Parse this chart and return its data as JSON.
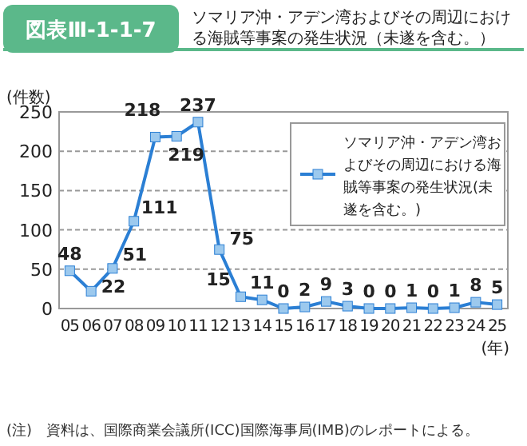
{
  "chart_data": {
    "type": "line",
    "title": "図表Ⅲ-1-1-7",
    "subtitle": "ソマリア沖・アデン湾およびその周辺における海賊等事案の発生状況（未遂を含む。）",
    "ylabel": "(件数)",
    "xlabel": "(年)",
    "categories": [
      "05",
      "06",
      "07",
      "08",
      "09",
      "10",
      "11",
      "12",
      "13",
      "14",
      "15",
      "16",
      "17",
      "18",
      "19",
      "20",
      "21",
      "22",
      "23",
      "24",
      "25"
    ],
    "series": [
      {
        "name": "ソマリア沖・アデン湾およびその周辺における海賊等事案の発生状況(未遂を含む。)",
        "color": "#2b7fd4",
        "values": [
          48,
          22,
          51,
          111,
          218,
          219,
          237,
          75,
          15,
          11,
          0,
          2,
          9,
          3,
          0,
          0,
          1,
          0,
          1,
          8,
          5
        ]
      }
    ],
    "ylim": [
      0,
      250
    ],
    "yticks": [
      0,
      50,
      100,
      150,
      200,
      250
    ],
    "grid": "y",
    "legend": "top right",
    "marker": "square",
    "line_style": "solid",
    "data_labels": true,
    "annotations": [
      "(注)　資料は、国際商業会議所(ICC)国際海事局(IMB)のレポートによる。"
    ]
  }
}
